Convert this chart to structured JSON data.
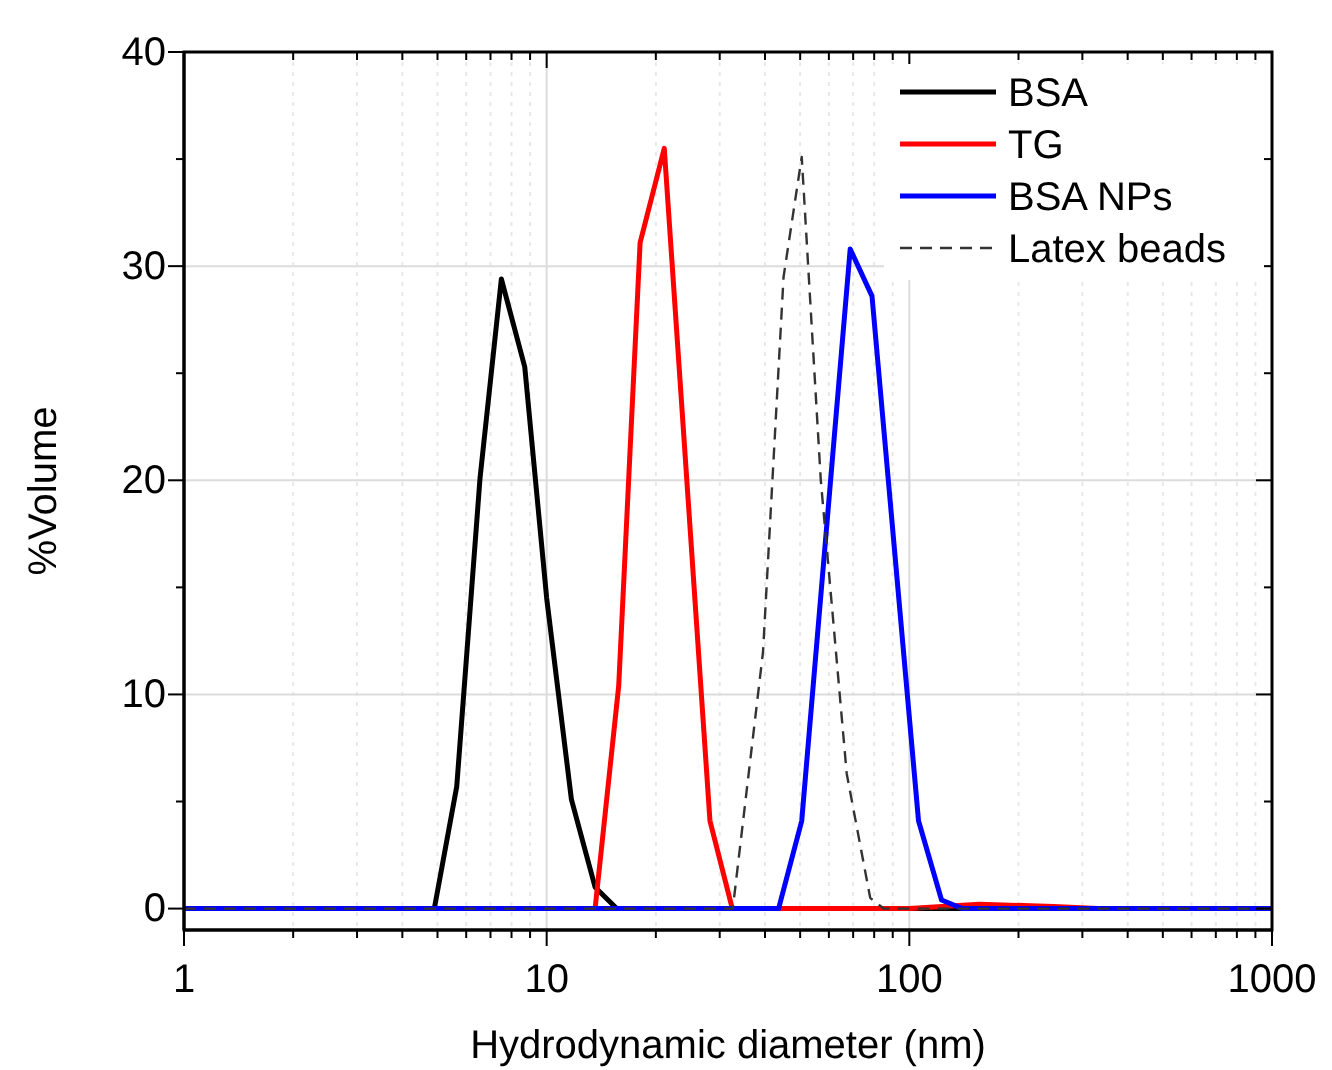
{
  "chart_data": {
    "type": "line",
    "xlabel": "Hydrodynamic diameter (nm)",
    "ylabel": "%Volume",
    "log": "x",
    "grid": true,
    "legend": "top right",
    "xlim": [
      1,
      1000
    ],
    "ylim": [
      -1,
      40
    ],
    "xticks": [
      1,
      {
        "value": 2,
        "label": null
      },
      {
        "value": 3,
        "label": null
      },
      {
        "value": 4,
        "label": null
      },
      {
        "value": 5,
        "label": null
      },
      {
        "value": 6,
        "label": null
      },
      {
        "value": 7,
        "label": null
      },
      {
        "value": 8,
        "label": null
      },
      {
        "value": 9,
        "label": null
      },
      10,
      {
        "value": 20,
        "label": null
      },
      {
        "value": 30,
        "label": null
      },
      {
        "value": 40,
        "label": null
      },
      {
        "value": 50,
        "label": null
      },
      {
        "value": 60,
        "label": null
      },
      {
        "value": 70,
        "label": null
      },
      {
        "value": 80,
        "label": null
      },
      {
        "value": 90,
        "label": null
      },
      100,
      {
        "value": 200,
        "label": null
      },
      {
        "value": 300,
        "label": null
      },
      {
        "value": 400,
        "label": null
      },
      {
        "value": 500,
        "label": null
      },
      {
        "value": 600,
        "label": null
      },
      {
        "value": 700,
        "label": null
      },
      {
        "value": 800,
        "label": null
      },
      {
        "value": 900,
        "label": null
      },
      1000
    ],
    "yticks": [
      0,
      {
        "value": 5,
        "label": null
      },
      10,
      {
        "value": 15,
        "label": null
      },
      20,
      {
        "value": 25,
        "label": null
      },
      30,
      {
        "value": 35,
        "label": null
      },
      40
    ],
    "series": [
      {
        "name": "BSA",
        "color": "#000000",
        "line_style": "solid",
        "x": [
          1,
          4.9,
          5.65,
          6.55,
          7.5,
          8.7,
          10,
          11.7,
          13.6,
          15.6,
          1000
        ],
        "values": [
          0,
          0,
          5.7,
          20.1,
          29.4,
          25.3,
          14.5,
          5.1,
          1,
          0,
          0
        ]
      },
      {
        "name": "TG",
        "color": "#ff0000",
        "line_style": "solid",
        "x": [
          1,
          13.6,
          15.8,
          18.1,
          21.1,
          28.2,
          32.5,
          100,
          156,
          250,
          330,
          1000
        ],
        "values": [
          0,
          0,
          10.4,
          31.1,
          35.5,
          4.1,
          0,
          0,
          0.2,
          0.1,
          0,
          0
        ]
      },
      {
        "name": "BSA NPs",
        "color": "#0000ff",
        "line_style": "solid",
        "x": [
          1,
          43.6,
          50.5,
          68.7,
          78.9,
          106,
          122.7,
          140,
          1000
        ],
        "values": [
          0,
          0,
          4.1,
          30.8,
          28.6,
          4.1,
          0.4,
          0,
          0
        ]
      },
      {
        "name": "Latex beads",
        "color": "#333333",
        "line_style": "dashed",
        "x": [
          1,
          32.6,
          39.5,
          45,
          50.5,
          57,
          67.2,
          78,
          85,
          1000
        ],
        "values": [
          0,
          0,
          12,
          29.5,
          35.1,
          20,
          6.3,
          0.5,
          0,
          0
        ]
      }
    ]
  }
}
